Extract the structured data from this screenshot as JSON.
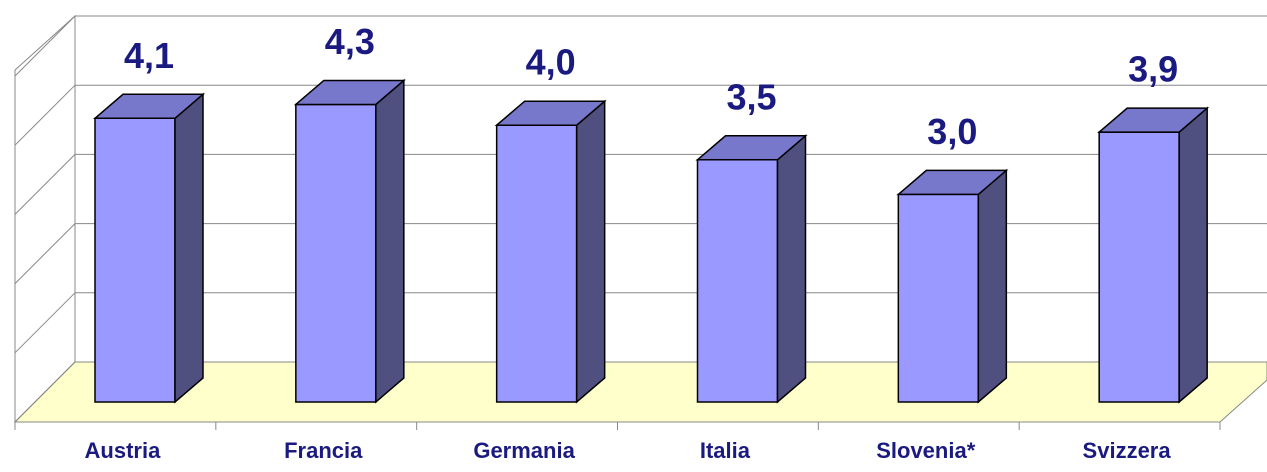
{
  "chart_data": {
    "type": "bar3d",
    "categories": [
      "Austria",
      "Francia",
      "Germania",
      "Italia",
      "Slovenia*",
      "Svizzera"
    ],
    "values": [
      4.1,
      4.3,
      4.0,
      3.5,
      3.0,
      3.9
    ],
    "value_labels": [
      "4,1",
      "4,3",
      "4,0",
      "3,5",
      "3,0",
      "3,9"
    ],
    "color": "#9999ff",
    "ylim": [
      0,
      5
    ],
    "yticks": [
      0,
      1,
      2,
      3,
      4,
      5
    ],
    "grid": true
  }
}
